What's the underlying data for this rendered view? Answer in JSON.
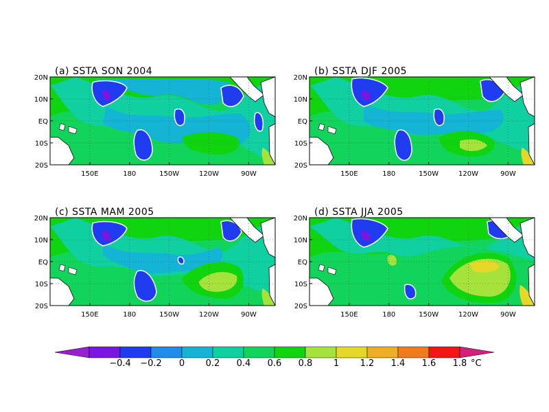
{
  "panels": [
    {
      "title": "(a) SSTA SON 2004"
    },
    {
      "title": "(b) SSTA DJF 2005"
    },
    {
      "title": "(c) SSTA MAM 2005"
    },
    {
      "title": "(d) SSTA JJA 2005"
    }
  ],
  "map": {
    "lon_range": [
      120,
      290
    ],
    "lat_range": [
      -20,
      20
    ],
    "lon_ticks": [
      {
        "lon": 150,
        "label": "150E"
      },
      {
        "lon": 180,
        "label": "180"
      },
      {
        "lon": 210,
        "label": "150W"
      },
      {
        "lon": 240,
        "label": "120W"
      },
      {
        "lon": 270,
        "label": "90W"
      }
    ],
    "lat_ticks": [
      {
        "lat": 20,
        "label": "20N"
      },
      {
        "lat": 10,
        "label": "10N"
      },
      {
        "lat": 0,
        "label": "EQ"
      },
      {
        "lat": -10,
        "label": "10S"
      },
      {
        "lat": -20,
        "label": "20S"
      }
    ],
    "gridlines": "dotted",
    "contour_line_color": "#ffffff"
  },
  "colorbar": {
    "unit": "°C",
    "labels": [
      "-0.4",
      "-0.2",
      "0",
      "0.2",
      "0.4",
      "0.6",
      "0.8",
      "1",
      "1.2",
      "1.4",
      "1.6",
      "1.8"
    ],
    "below_color": "#9a1ed2",
    "above_color": "#d61f7a",
    "colors": [
      "#7a16e0",
      "#1f3cf0",
      "#1e8ce8",
      "#14b4d4",
      "#10cfa0",
      "#12d45a",
      "#11d411",
      "#a6e23c",
      "#e6d828",
      "#ecae26",
      "#ee7c1e",
      "#f01616"
    ]
  },
  "land_color": "#ffffff"
}
